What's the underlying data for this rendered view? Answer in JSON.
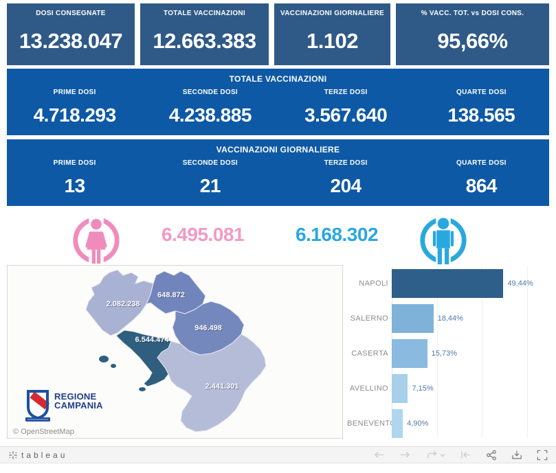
{
  "kpi_row": [
    {
      "label": "DOSI CONSEGNATE",
      "value": "13.238.047"
    },
    {
      "label": "TOTALE VACCINAZIONI",
      "value": "12.663.383"
    },
    {
      "label": "VACCINAZIONI GIORNALIERE",
      "value": "1.102"
    },
    {
      "label": "% VACC. TOT. vs DOSI CONS.",
      "value": "95,66%"
    }
  ],
  "totale_band": {
    "title": "TOTALE VACCINAZIONI",
    "columns": [
      {
        "label": "PRIME DOSI",
        "value": "4.718.293"
      },
      {
        "label": "SECONDE DOSI",
        "value": "4.238.885"
      },
      {
        "label": "TERZE DOSI",
        "value": "3.567.640"
      },
      {
        "label": "QUARTE DOSI",
        "value": "138.565"
      }
    ]
  },
  "giornaliere_band": {
    "title": "VACCINAZIONI GIORNALIERE",
    "columns": [
      {
        "label": "PRIME DOSI",
        "value": "13"
      },
      {
        "label": "SECONDE DOSI",
        "value": "21"
      },
      {
        "label": "TERZE DOSI",
        "value": "204"
      },
      {
        "label": "QUARTE DOSI",
        "value": "864"
      }
    ]
  },
  "gender": {
    "female_value": "6.495.081",
    "male_value": "6.168.302",
    "female_color": "#F08CBC",
    "male_color": "#29A8DF"
  },
  "map": {
    "attribution": "© OpenStreetMap",
    "logo_line1": "REGIONE",
    "logo_line2": "CAMPANIA",
    "regions": [
      {
        "name": "Caserta",
        "value": "2.082.238",
        "color": "#A9B2D3"
      },
      {
        "name": "Benevento",
        "value": "648.872",
        "color": "#7185BC"
      },
      {
        "name": "Avellino",
        "value": "946.498",
        "color": "#7488BE"
      },
      {
        "name": "Napoli",
        "value": "6.544.474",
        "color": "#2F5E7E"
      },
      {
        "name": "Salerno",
        "value": "2.441.301",
        "color": "#B4BCD8"
      }
    ]
  },
  "chart_data": {
    "type": "bar",
    "orientation": "horizontal",
    "title": "",
    "xlabel": "",
    "ylabel": "",
    "categories": [
      "NAPOLI",
      "SALERNO",
      "CASERTA",
      "AVELLINO",
      "BENEVENTO"
    ],
    "values": [
      49.44,
      18.44,
      15.73,
      7.15,
      4.9
    ],
    "value_labels": [
      "49,44%",
      "18,44%",
      "15,73%",
      "7,15%",
      "4,90%"
    ],
    "bar_colors": [
      "#2E5F8A",
      "#7FB2D9",
      "#8ABADF",
      "#A7CFEA",
      "#AFD6EE"
    ],
    "xlim": [
      0,
      70
    ],
    "grid": true,
    "legend_position": "none"
  },
  "footer": {
    "brand": "tableau",
    "icons": [
      "undo",
      "redo",
      "replay",
      "reset",
      "share",
      "download",
      "fullscreen"
    ]
  }
}
